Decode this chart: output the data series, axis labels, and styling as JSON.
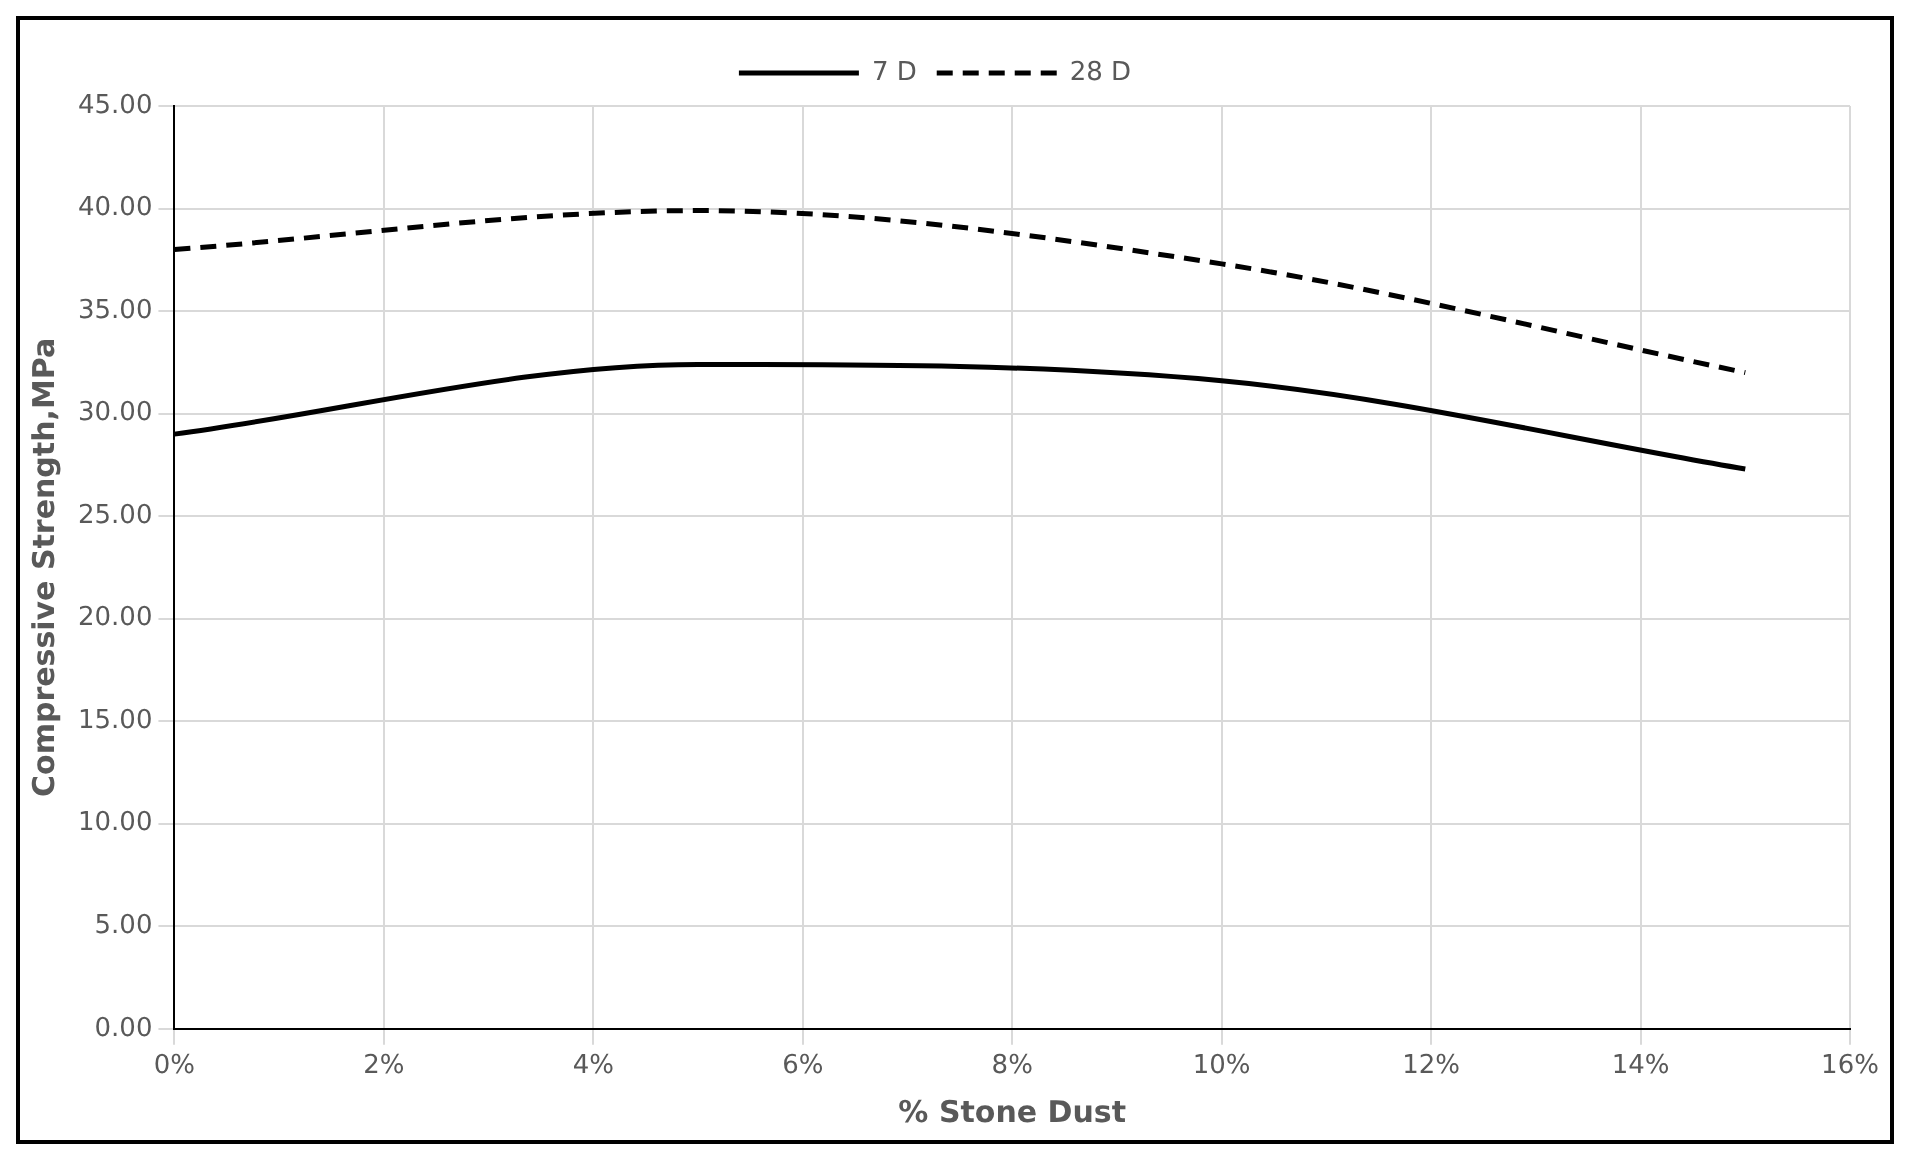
{
  "chart_data": {
    "type": "line",
    "xlabel": "% Stone Dust",
    "ylabel": "Compressive Strength,MPa",
    "x": [
      0,
      5,
      10,
      15
    ],
    "series": [
      {
        "name": "7 D",
        "color": "#000000",
        "line_style": "solid",
        "values": [
          29.0,
          32.4,
          31.6,
          27.3
        ]
      },
      {
        "name": "28 D",
        "color": "#000000",
        "line_style": "dashed",
        "values": [
          38.0,
          39.9,
          37.3,
          32.0
        ]
      }
    ],
    "xlim": [
      0,
      16
    ],
    "xticks": [
      {
        "value": 0,
        "label": "0%"
      },
      {
        "value": 2,
        "label": "2%"
      },
      {
        "value": 4,
        "label": "4%"
      },
      {
        "value": 6,
        "label": "6%"
      },
      {
        "value": 8,
        "label": "8%"
      },
      {
        "value": 10,
        "label": "10%"
      },
      {
        "value": 12,
        "label": "12%"
      },
      {
        "value": 14,
        "label": "14%"
      },
      {
        "value": 16,
        "label": "16%"
      }
    ],
    "ylim": [
      0,
      45
    ],
    "yticks": [
      {
        "value": 0,
        "label": "0.00"
      },
      {
        "value": 5,
        "label": "5.00"
      },
      {
        "value": 10,
        "label": "10.00"
      },
      {
        "value": 15,
        "label": "15.00"
      },
      {
        "value": 20,
        "label": "20.00"
      },
      {
        "value": 25,
        "label": "25.00"
      },
      {
        "value": 30,
        "label": "30.00"
      },
      {
        "value": 35,
        "label": "35.00"
      },
      {
        "value": 40,
        "label": "40.00"
      },
      {
        "value": 45,
        "label": "45.00"
      }
    ],
    "grid": true,
    "legend": "top",
    "marker": "none"
  }
}
